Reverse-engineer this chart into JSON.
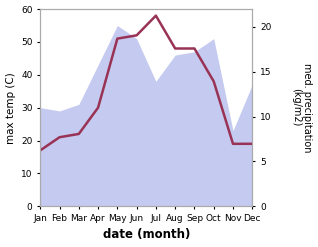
{
  "months": [
    "Jan",
    "Feb",
    "Mar",
    "Apr",
    "May",
    "Jun",
    "Jul",
    "Aug",
    "Sep",
    "Oct",
    "Nov",
    "Dec"
  ],
  "month_indices": [
    0,
    1,
    2,
    3,
    4,
    5,
    6,
    7,
    8,
    9,
    10,
    11
  ],
  "max_temp": [
    17,
    21,
    22,
    30,
    51,
    52,
    58,
    48,
    48,
    38,
    19,
    19
  ],
  "precipitation_left_scale": [
    30,
    29,
    31,
    43,
    55,
    51,
    38,
    46,
    47,
    51,
    23,
    37
  ],
  "temp_color": "#993355",
  "precip_fill_color": "#c5caf0",
  "ylabel_left": "max temp (C)",
  "ylabel_right": "med. precipitation\n(kg/m2)",
  "xlabel": "date (month)",
  "ylim_left": [
    0,
    60
  ],
  "ylim_right": [
    0,
    22
  ],
  "yticks_left": [
    0,
    10,
    20,
    30,
    40,
    50,
    60
  ],
  "yticks_right": [
    0,
    5,
    10,
    15,
    20
  ],
  "bg_color": "#ffffff"
}
